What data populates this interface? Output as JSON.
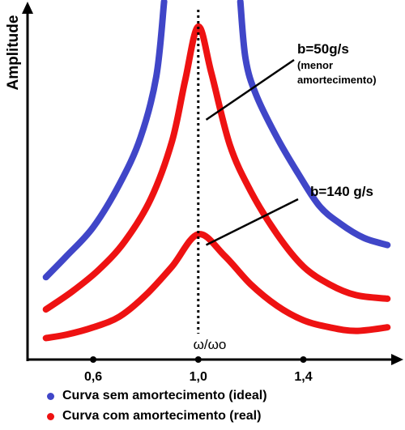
{
  "chart_data": {
    "type": "line",
    "title": "",
    "xlabel": "ω/ωo",
    "ylabel": "Amplitude",
    "xlim": [
      0.35,
      1.75
    ],
    "ylim": [
      0,
      100
    ],
    "x_ticks": [
      "0,6",
      "1,0",
      "1,4"
    ],
    "x_tick_values": [
      0.6,
      1.0,
      1.4
    ],
    "resonance_x": 1.0,
    "series": [
      {
        "name": "Curva sem amortecimento (ideal)",
        "color": "#4046c8",
        "segments": [
          {
            "x": [
              0.42,
              0.5,
              0.6,
              0.7,
              0.78,
              0.84,
              0.87
            ],
            "y": [
              23,
              29,
              37,
              49,
              62,
              79,
              100
            ]
          },
          {
            "x": [
              1.16,
              1.18,
              1.22,
              1.3,
              1.38,
              1.46,
              1.54,
              1.63,
              1.72
            ],
            "y": [
              100,
              84,
              74,
              62,
              52,
              43,
              38,
              34,
              32
            ]
          }
        ]
      },
      {
        "name": "b=50g/s",
        "color": "#ee1212",
        "x": [
          0.42,
          0.52,
          0.62,
          0.72,
          0.82,
          0.9,
          0.95,
          1.0,
          1.05,
          1.12,
          1.2,
          1.3,
          1.4,
          1.5,
          1.6,
          1.72
        ],
        "y": [
          14,
          19,
          25,
          33,
          45,
          61,
          78,
          93,
          80,
          60,
          47,
          35,
          26,
          21,
          18,
          17
        ]
      },
      {
        "name": "b=140 g/s",
        "color": "#ee1212",
        "x": [
          0.42,
          0.5,
          0.6,
          0.7,
          0.8,
          0.9,
          1.0,
          1.1,
          1.2,
          1.3,
          1.4,
          1.5,
          1.6,
          1.72
        ],
        "y": [
          6,
          7,
          9,
          12,
          18,
          26,
          35,
          29,
          21,
          15,
          11,
          9,
          8,
          9
        ]
      }
    ],
    "annotations": [
      {
        "text": "b=50g/s",
        "note": [
          "(menor",
          "amortecimento)"
        ]
      },
      {
        "text": "b=140 g/s"
      }
    ]
  },
  "legend": {
    "items": [
      {
        "label": "Curva sem amortecimento (ideal)",
        "color": "#4046c8"
      },
      {
        "label": "Curva com amortecimento (real)",
        "color": "#ee1212"
      }
    ]
  }
}
